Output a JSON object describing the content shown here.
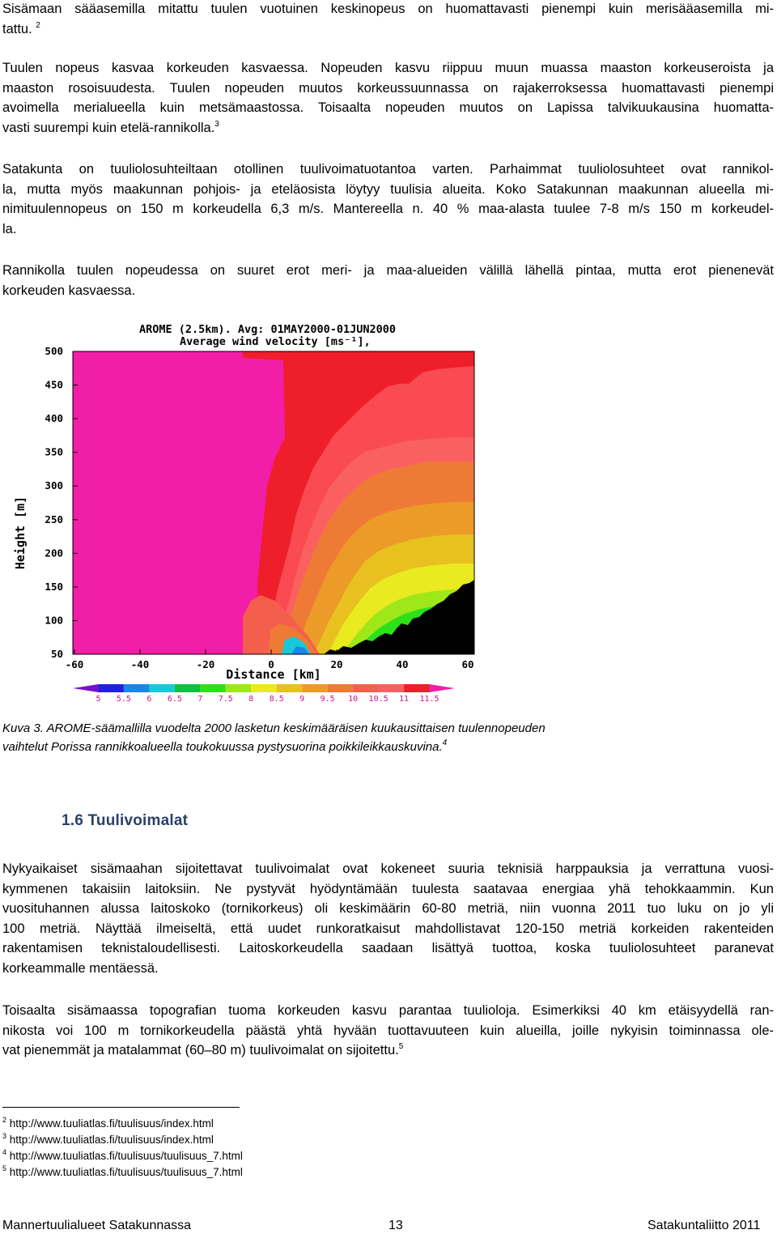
{
  "paragraphs": {
    "p1": {
      "lines": [
        "Sisämaan sääasemilla mitattu tuulen vuotuinen keskinopeus on huomattavasti pienempi kuin merisääasemilla mi-",
        "tattu."
      ],
      "footnote_ref": "2"
    },
    "p2": {
      "lines": [
        "Tuulen nopeus kasvaa korkeuden kasvaessa. Nopeuden kasvu riippuu muun muassa maaston korkeuseroista ja",
        "maaston rosoisuudesta. Tuulen nopeuden muutos korkeussuunnassa on rajakerroksessa huomattavasti pienempi",
        "avoimella merialueella kuin metsämaastossa. Toisaalta nopeuden muutos on Lapissa talvikuukausina huomatta-",
        "vasti suurempi kuin etelä-rannikolla."
      ],
      "footnote_ref": "3"
    },
    "p3": {
      "lines": [
        "Satakunta on tuuliolosuhteiltaan otollinen tuulivoimatuotantoa varten. Parhaimmat tuuliolosuhteet ovat rannikol-",
        "la, mutta myös maakunnan pohjois- ja eteläosista löytyy tuulisia alueita. Koko Satakunnan maakunnan alueella mi-",
        "nimituulennopeus on 150 m korkeudella 6,3 m/s. Mantereella n. 40 % maa-alasta tuulee 7-8 m/s 150 m korkeudel-",
        "la."
      ]
    },
    "p4": {
      "lines": [
        "Rannikolla tuulen nopeudessa on suuret erot meri- ja maa-alueiden välillä lähellä pintaa, mutta erot pienenevät",
        "korkeuden kasvaessa."
      ]
    },
    "p5": {
      "lines": [
        "Nykyaikaiset sisämaahan sijoitettavat tuulivoimalat ovat kokeneet suuria teknisiä harppauksia ja verrattuna vuosi-",
        "kymmenen takaisiin laitoksiin. Ne pystyvät hyödyntämään tuulesta saatavaa energiaa yhä tehokkaammin. Kun",
        "vuosituhannen alussa laitoskoko (tornikorkeus) oli keskimäärin 60-80 metriä, niin vuonna 2011 tuo luku on jo yli",
        "100 metriä. Näyttää ilmeiseltä, että uudet runkoratkaisut mahdollistavat 120-150 metriä korkeiden rakenteiden",
        "rakentamisen teknistaloudellisesti. Laitoskorkeudella saadaan lisättyä tuottoa, koska tuuliolosuhteet paranevat",
        "korkeammalle mentäessä."
      ]
    },
    "p6": {
      "lines": [
        "Toisaalta sisämaassa topografian tuoma korkeuden kasvu parantaa tuulioloja. Esimerkiksi 40 km etäisyydellä ran-",
        "nikosta voi 100 m tornikorkeudella päästä yhtä hyvään tuottavuuteen kuin alueilla, joille nykyisin toiminnassa ole-",
        "vat pienemmät ja matalammat (60–80 m) tuulivoimalat on sijoitettu."
      ],
      "footnote_ref": "5"
    }
  },
  "figure": {
    "title_line1": "AROME (2.5km). Avg: 01MAY2000-01JUN2000",
    "title_line2": "Average wind velocity [ms⁻¹],",
    "ylabel": "Height [m]",
    "xlabel": "Distance [km]",
    "y_ticks": [
      "500",
      "450",
      "400",
      "350",
      "300",
      "250",
      "200",
      "150",
      "100",
      "50"
    ],
    "x_ticks": [
      "-60",
      "-40",
      "-20",
      "0",
      "20",
      "40",
      "60"
    ],
    "colorbar_ticks": [
      "5",
      "5.5",
      "6",
      "6.5",
      "7",
      "7.5",
      "8",
      "8.5",
      "9",
      "9.5",
      "10",
      "10.5",
      "11",
      "11.5"
    ],
    "colorbar_colors": [
      "#7a10c8",
      "#2020e0",
      "#1a86e8",
      "#18c8d8",
      "#10c040",
      "#2ee01a",
      "#9ee81a",
      "#eaea20",
      "#e8c020",
      "#ec9a28",
      "#ee7a36",
      "#f45e4c",
      "#fa6060",
      "#ee1f2a",
      "#f21ea8"
    ]
  },
  "caption": {
    "line1": "Kuva 3. AROME-säämallilla vuodelta 2000 lasketun keskimääräisen kuukausittaisen tuulennopeuden",
    "line2": "vaihtelut Porissa rannikkoalueella toukokuussa pystysuorina poikkileikkauskuvina.",
    "footnote_ref": "4"
  },
  "heading": "1.6 Tuulivoimalat",
  "footnotes": [
    {
      "num": "2",
      "text": "http://www.tuuliatlas.fi/tuulisuus/index.html"
    },
    {
      "num": "3",
      "text": "http://www.tuuliatlas.fi/tuulisuus/index.html"
    },
    {
      "num": "4",
      "text": "http://www.tuuliatlas.fi/tuulisuus/tuulisuus_7.html"
    },
    {
      "num": "5",
      "text": "http://www.tuuliatlas.fi/tuulisuus/tuulisuus_7.html"
    }
  ],
  "footer": {
    "left": "Mannertuulialueet Satakunnassa",
    "center": "13",
    "right": "Satakuntaliitto 2011"
  }
}
